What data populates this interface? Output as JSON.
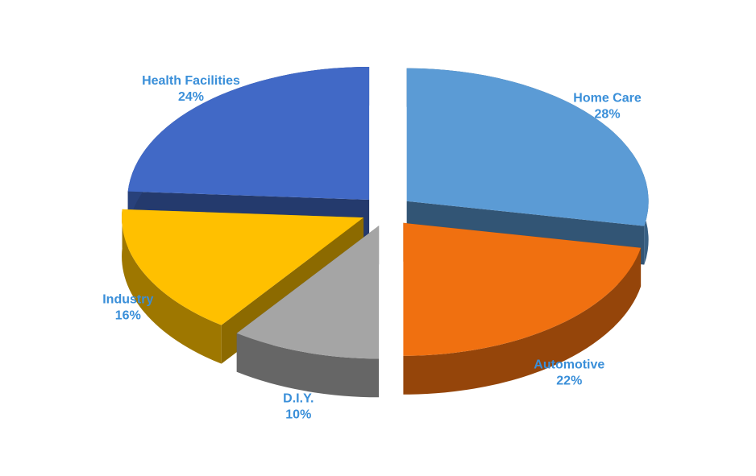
{
  "chart_data": {
    "type": "pie",
    "categories": [
      "Home Care",
      "Automotive",
      "D.I.Y.",
      "Industry",
      "Health Facilities"
    ],
    "values": [
      28,
      22,
      10,
      16,
      24
    ],
    "value_labels": [
      "28%",
      "22%",
      "10%",
      "16%",
      "24%"
    ],
    "colors": [
      "#5b9bd5",
      "#f07010",
      "#a5a5a5",
      "#ffc000",
      "#4169c6"
    ]
  }
}
